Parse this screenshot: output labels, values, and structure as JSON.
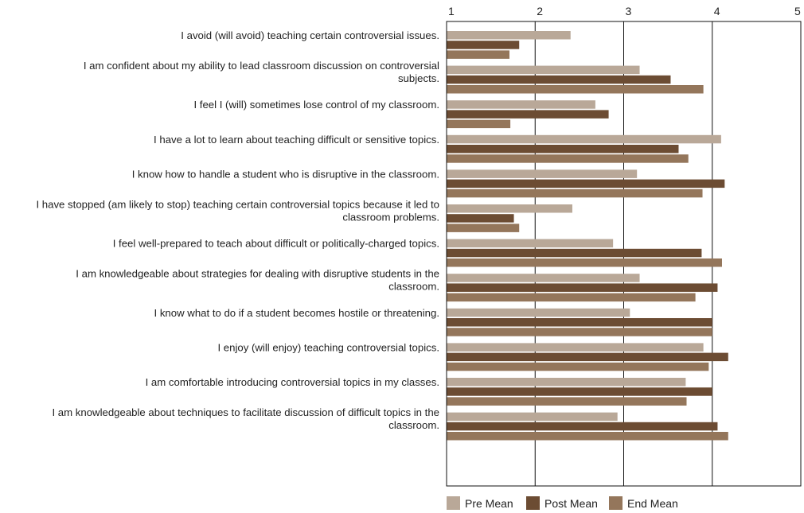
{
  "chart_data": {
    "type": "bar",
    "orientation": "horizontal",
    "title": "",
    "xlabel": "",
    "ylabel": "",
    "xlim": [
      1,
      5
    ],
    "x_ticks": [
      "1",
      "2",
      "3",
      "4",
      "5"
    ],
    "grid": "vertical lines at integer ticks",
    "legend_position": "bottom",
    "categories": [
      [
        "I avoid (will avoid) teaching certain controversial issues."
      ],
      [
        "I am confident about my ability to lead classroom discussion on controversial",
        "subjects."
      ],
      [
        "I feel I (will) sometimes lose control of my classroom."
      ],
      [
        "I have a lot to learn about teaching difficult or sensitive topics."
      ],
      [
        "I know how to handle a student who is disruptive in the classroom."
      ],
      [
        "I have stopped (am likely to stop) teaching certain controversial topics because it led to",
        "classroom problems."
      ],
      [
        "I feel well-prepared to teach about difficult or politically-charged topics."
      ],
      [
        "I am knowledgeable about strategies for dealing with disruptive students in the",
        "classroom."
      ],
      [
        "I know what to do if a student becomes hostile or threatening."
      ],
      [
        "I enjoy (will enjoy) teaching controversial topics."
      ],
      [
        "I am comfortable introducing controversial topics in my classes."
      ],
      [
        "I am knowledgeable about techniques to facilitate discussion of difficult topics in the",
        "classroom."
      ]
    ],
    "series": [
      {
        "name": "Pre Mean",
        "color": "#b9a898",
        "values": [
          2.4,
          3.18,
          2.68,
          4.1,
          3.15,
          2.42,
          2.88,
          3.18,
          3.07,
          3.9,
          3.7,
          2.93
        ]
      },
      {
        "name": "Post Mean",
        "color": "#6c4c33",
        "values": [
          1.82,
          3.53,
          2.83,
          3.62,
          4.14,
          1.76,
          3.88,
          4.06,
          4.0,
          4.18,
          4.0,
          4.06
        ]
      },
      {
        "name": "End Mean",
        "color": "#94765b",
        "values": [
          1.71,
          3.9,
          1.72,
          3.73,
          3.89,
          1.82,
          4.11,
          3.81,
          4.0,
          3.96,
          3.71,
          4.18
        ]
      }
    ]
  }
}
